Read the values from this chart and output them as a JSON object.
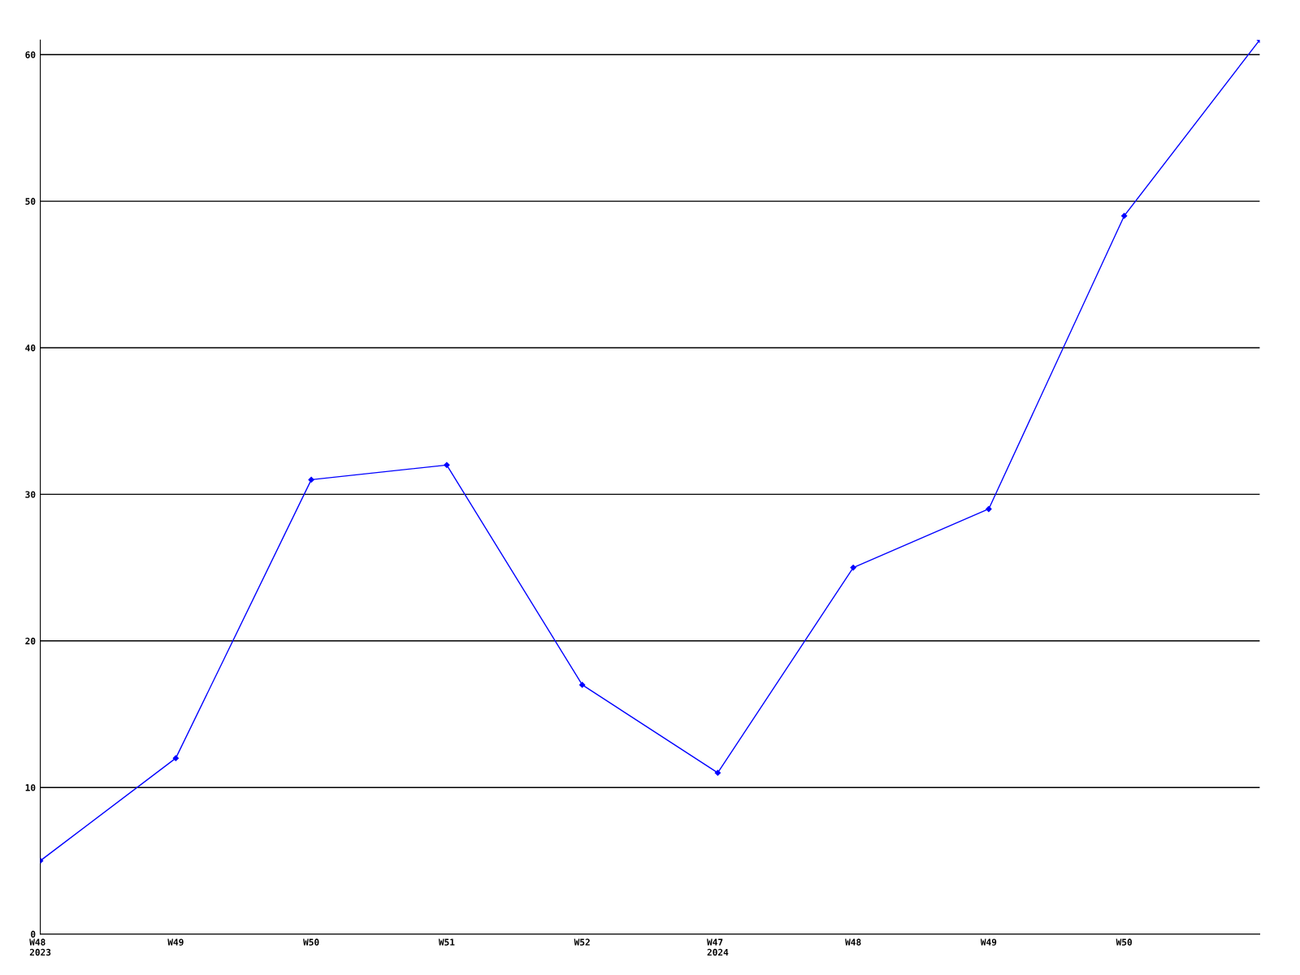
{
  "chart_data": {
    "type": "line",
    "categories": [
      "W48\n2023",
      "W49",
      "W50",
      "W51",
      "W52",
      "W47\n2024",
      "W48",
      "W49",
      "W50",
      null
    ],
    "series": [
      {
        "color": "#0000ff",
        "values": [
          5,
          12,
          31,
          32,
          17,
          11,
          25,
          29,
          49,
          61
        ]
      }
    ],
    "ylim": [
      0,
      61
    ],
    "yticks": [
      0,
      10,
      20,
      30,
      40,
      50,
      60
    ],
    "grid": "y",
    "marker": "diamond",
    "line_style": "solid"
  }
}
